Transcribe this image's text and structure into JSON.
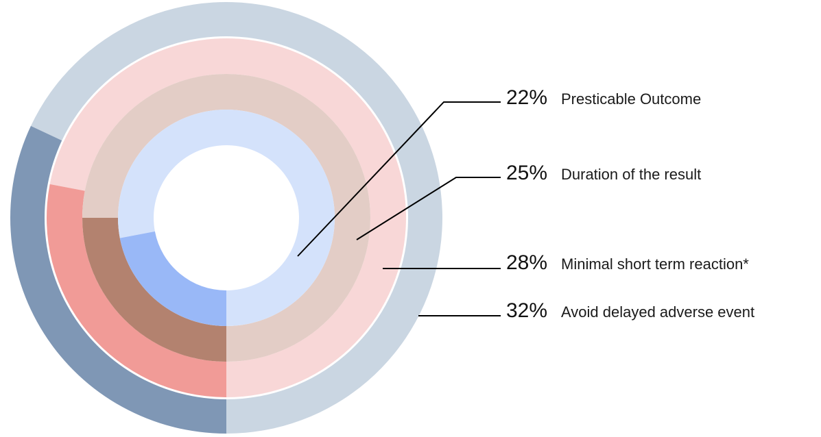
{
  "chart_data": {
    "type": "radial-bar",
    "series": [
      {
        "label": "Avoid delayed adverse event",
        "percent_text": "32%",
        "value": 32,
        "color": "#7f97b5",
        "track_color": "#cad6e2"
      },
      {
        "label": "Minimal short term reaction*",
        "percent_text": "28%",
        "value": 28,
        "color": "#f19b97",
        "track_color": "#f8d7d7"
      },
      {
        "label": "Duration of the result",
        "percent_text": "25%",
        "value": 25,
        "color": "#b3826f",
        "track_color": "#e3cdc6"
      },
      {
        "label": "Presticable Outcome",
        "percent_text": "22%",
        "value": 22,
        "color": "#99b8f7",
        "track_color": "#d4e2fb"
      }
    ]
  }
}
